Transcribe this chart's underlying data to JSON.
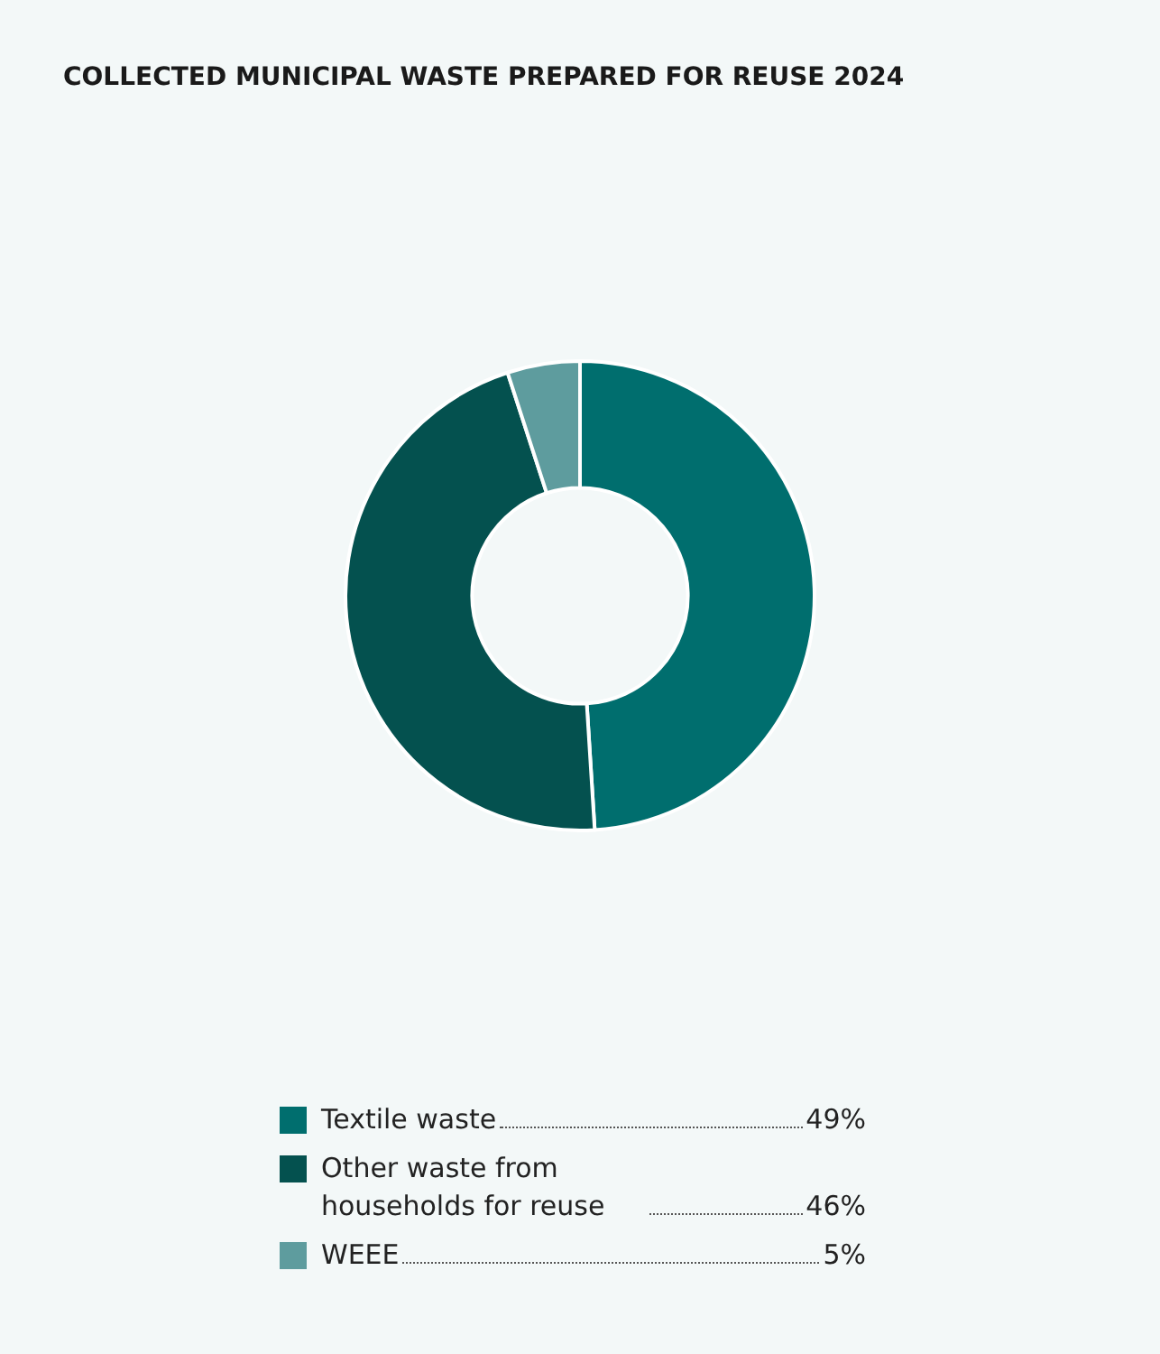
{
  "chart_data": {
    "type": "donut",
    "title": "COLLECTED MUNICIPAL WASTE PREPARED FOR REUSE 2024",
    "categories": [
      "Textile waste",
      "Other waste from households for reuse",
      "WEEE"
    ],
    "values": [
      49,
      46,
      5
    ],
    "value_labels": [
      "49%",
      "46%",
      "5%"
    ],
    "colors": [
      "#006e6e",
      "#04514f",
      "#5e9c9e"
    ],
    "legend": "bottom"
  }
}
